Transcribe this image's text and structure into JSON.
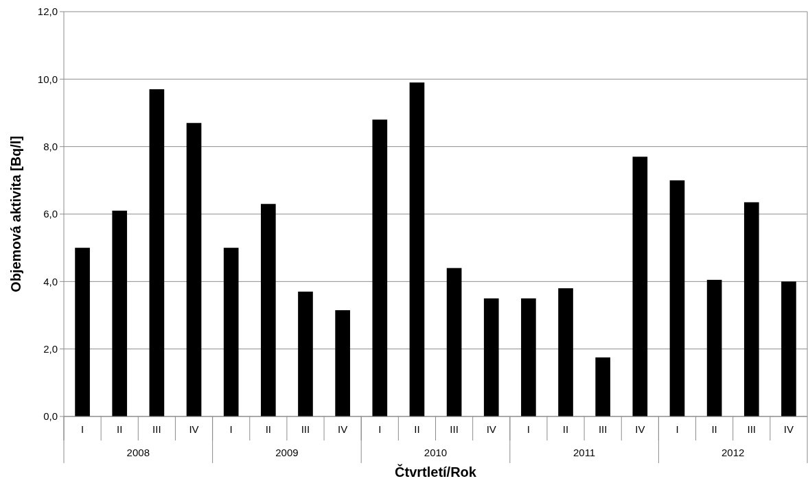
{
  "chart_data": {
    "type": "bar",
    "xlabel": "Čtvrtletí/Rok",
    "ylabel": "Objemová aktivita [Bq/l]",
    "categories": [
      "I",
      "II",
      "III",
      "IV",
      "I",
      "II",
      "III",
      "IV",
      "I",
      "II",
      "III",
      "IV",
      "I",
      "II",
      "III",
      "IV",
      "I",
      "II",
      "III",
      "IV"
    ],
    "values": [
      5.0,
      6.1,
      9.7,
      8.7,
      5.0,
      6.3,
      3.7,
      3.15,
      8.8,
      9.9,
      4.4,
      3.5,
      3.5,
      3.8,
      1.75,
      7.7,
      7.0,
      4.05,
      6.35,
      4.0
    ],
    "color": "#000000",
    "annotations": [
      "2008",
      "2009",
      "2010",
      "2011",
      "2012"
    ],
    "ylim": [
      0,
      12
    ],
    "yticks": [
      {
        "value": 0,
        "label": "0,0"
      },
      {
        "value": 2,
        "label": "2,0"
      },
      {
        "value": 4,
        "label": "4,0"
      },
      {
        "value": 6,
        "label": "6,0"
      },
      {
        "value": 8,
        "label": "8,0"
      },
      {
        "value": 10,
        "label": "10,0"
      },
      {
        "value": 12,
        "label": "12,0"
      }
    ],
    "grid": "y"
  }
}
